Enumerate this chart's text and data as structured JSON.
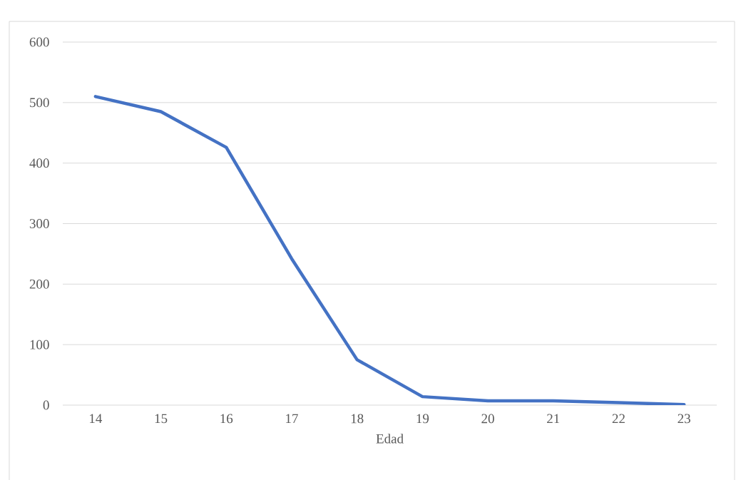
{
  "chart_data": {
    "type": "line",
    "xlabel": "Edad",
    "categories": [
      "14",
      "15",
      "16",
      "17",
      "18",
      "19",
      "20",
      "21",
      "22",
      "23"
    ],
    "series": [
      {
        "color": "#4472c4",
        "values": [
          510,
          485,
          426,
          242,
          75,
          14,
          7,
          7,
          4,
          1
        ]
      }
    ],
    "ylim": [
      0,
      600
    ],
    "yticks": [
      0,
      100,
      200,
      300,
      400,
      500,
      600
    ],
    "grid": "y",
    "legend": false,
    "marker": "none",
    "line_style": "solid"
  }
}
